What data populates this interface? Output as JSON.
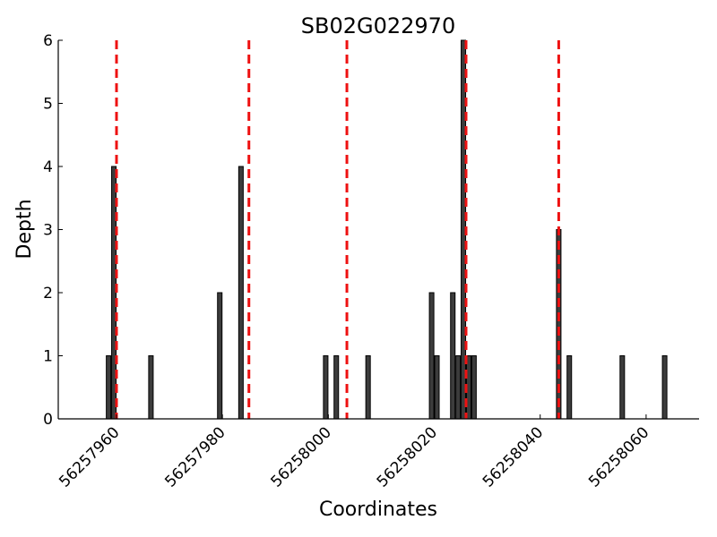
{
  "chart_data": {
    "type": "bar",
    "title": "SB02G022970",
    "xlabel": "Coordinates",
    "ylabel": "Depth",
    "xlim": [
      56257949,
      56258070
    ],
    "ylim": [
      0,
      6
    ],
    "xticks": [
      56257960,
      56257980,
      56258000,
      56258020,
      56258040,
      56258060
    ],
    "yticks": [
      0,
      1,
      2,
      3,
      4,
      5,
      6
    ],
    "grid": false,
    "bars": [
      {
        "x": 56257958.5,
        "y": 1
      },
      {
        "x": 56257959.5,
        "y": 4
      },
      {
        "x": 56257966.5,
        "y": 1
      },
      {
        "x": 56257979.5,
        "y": 2
      },
      {
        "x": 56257983.5,
        "y": 4
      },
      {
        "x": 56257999.5,
        "y": 1
      },
      {
        "x": 56258001.5,
        "y": 1
      },
      {
        "x": 56258007.5,
        "y": 1
      },
      {
        "x": 56258019.5,
        "y": 2
      },
      {
        "x": 56258020.5,
        "y": 1
      },
      {
        "x": 56258023.5,
        "y": 2
      },
      {
        "x": 56258024.5,
        "y": 1
      },
      {
        "x": 56258025.5,
        "y": 6
      },
      {
        "x": 56258026.5,
        "y": 1
      },
      {
        "x": 56258027.5,
        "y": 1
      },
      {
        "x": 56258043.5,
        "y": 3
      },
      {
        "x": 56258045.5,
        "y": 1
      },
      {
        "x": 56258055.5,
        "y": 1
      },
      {
        "x": 56258063.5,
        "y": 1
      }
    ],
    "bar_color": "#3c3c3c",
    "reference_lines": [
      56257960,
      56257985,
      56258003.5,
      56258026,
      56258043.5
    ],
    "reference_line_color": "#ee1111"
  }
}
